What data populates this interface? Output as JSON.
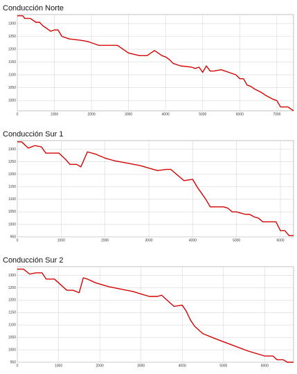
{
  "chart_data": [
    {
      "type": "line",
      "title": "Conducción Norte",
      "x": [
        0,
        150,
        200,
        350,
        500,
        600,
        700,
        900,
        1000,
        1100,
        1200,
        1400,
        1700,
        1900,
        2000,
        2200,
        2700,
        3000,
        3300,
        3500,
        3700,
        3900,
        4000,
        4100,
        4200,
        4400,
        4700,
        4800,
        4900,
        5000,
        5100,
        5200,
        5300,
        5500,
        5700,
        5800,
        5900,
        6000,
        6100,
        6200,
        6300,
        6400,
        6600,
        6700,
        6900,
        7000,
        7100,
        7300,
        7450
      ],
      "series": [
        {
          "color": "#d40000",
          "values": [
            1330,
            1330,
            1320,
            1320,
            1305,
            1305,
            1290,
            1270,
            1275,
            1275,
            1250,
            1240,
            1235,
            1230,
            1225,
            1215,
            1215,
            1185,
            1175,
            1175,
            1195,
            1175,
            1170,
            1160,
            1145,
            1135,
            1130,
            1125,
            1130,
            1110,
            1135,
            1115,
            1115,
            1120,
            1110,
            1105,
            1100,
            1085,
            1085,
            1060,
            1055,
            1045,
            1030,
            1020,
            1005,
            1000,
            975,
            975,
            960
          ]
        }
      ],
      "xlim": [
        0,
        7450
      ],
      "xticks": [
        0,
        1000,
        2000,
        3000,
        4000,
        5000,
        6000,
        7000
      ],
      "ylim": [
        960,
        1335
      ],
      "yticks": [
        1000,
        1050,
        1100,
        1150,
        1200,
        1250,
        1300
      ],
      "grid": true
    },
    {
      "type": "line",
      "title": "Conducción Sur 1",
      "x": [
        0,
        100,
        250,
        400,
        550,
        650,
        950,
        1100,
        1200,
        1350,
        1450,
        1600,
        1800,
        2000,
        2200,
        2500,
        2800,
        3000,
        3200,
        3400,
        3500,
        3800,
        4000,
        4100,
        4200,
        4300,
        4400,
        4700,
        4800,
        4900,
        5000,
        5100,
        5200,
        5300,
        5400,
        5500,
        5600,
        5700,
        5900,
        6000,
        6100,
        6200,
        6300
      ],
      "series": [
        {
          "color": "#d40000",
          "values": [
            1330,
            1330,
            1305,
            1315,
            1310,
            1285,
            1285,
            1260,
            1240,
            1240,
            1230,
            1290,
            1280,
            1265,
            1255,
            1245,
            1235,
            1225,
            1215,
            1220,
            1220,
            1175,
            1180,
            1150,
            1125,
            1100,
            1070,
            1070,
            1065,
            1050,
            1050,
            1045,
            1040,
            1040,
            1030,
            1025,
            1010,
            1010,
            1010,
            975,
            975,
            955,
            955
          ]
        }
      ],
      "xlim": [
        0,
        6300
      ],
      "xticks": [
        0,
        1000,
        2000,
        3000,
        4000,
        5000,
        6000
      ],
      "ylim": [
        950,
        1335
      ],
      "yticks": [
        950,
        1000,
        1050,
        1100,
        1150,
        1200,
        1250,
        1300
      ],
      "grid": true
    },
    {
      "type": "line",
      "title": "Conducción Sur 2",
      "x": [
        0,
        150,
        300,
        450,
        600,
        700,
        900,
        1200,
        1350,
        1500,
        1600,
        1700,
        1900,
        2200,
        2500,
        2800,
        3000,
        3200,
        3400,
        3500,
        3800,
        4000,
        4100,
        4200,
        4300,
        4500,
        4800,
        5200,
        5600,
        6000,
        6200,
        6300,
        6450,
        6550,
        6600,
        6700
      ],
      "series": [
        {
          "color": "#d40000",
          "values": [
            1325,
            1325,
            1305,
            1310,
            1310,
            1285,
            1285,
            1240,
            1240,
            1230,
            1290,
            1285,
            1270,
            1255,
            1245,
            1235,
            1225,
            1215,
            1215,
            1220,
            1175,
            1180,
            1155,
            1120,
            1095,
            1065,
            1045,
            1020,
            995,
            975,
            975,
            960,
            960,
            950,
            950,
            950
          ]
        }
      ],
      "xlim": [
        0,
        6700
      ],
      "xticks": [
        0,
        1000,
        2000,
        3000,
        4000,
        5000,
        6000
      ],
      "ylim": [
        950,
        1335
      ],
      "yticks": [
        950,
        1000,
        1050,
        1100,
        1150,
        1200,
        1250,
        1300
      ],
      "grid": true
    }
  ]
}
